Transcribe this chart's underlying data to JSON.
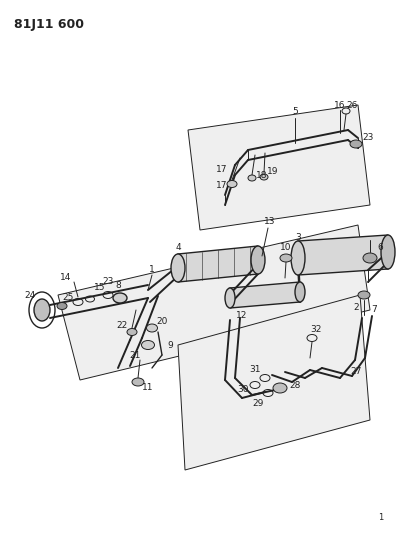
{
  "title": "81J11 600",
  "bg_color": "#ffffff",
  "lc": "#222222",
  "title_fontsize": 9,
  "label_fontsize": 6.5,
  "fig_width": 3.96,
  "fig_height": 5.33,
  "dpi": 100,
  "page_number": "1"
}
